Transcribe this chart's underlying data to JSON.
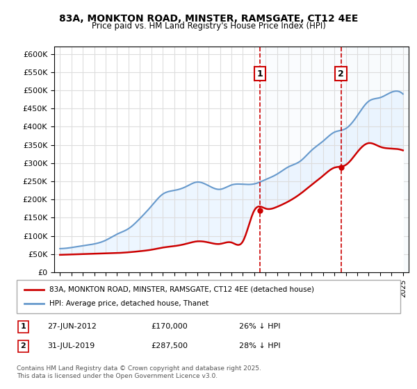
{
  "title": "83A, MONKTON ROAD, MINSTER, RAMSGATE, CT12 4EE",
  "subtitle": "Price paid vs. HM Land Registry's House Price Index (HPI)",
  "ylabel": "",
  "xlabel": "",
  "ylim": [
    0,
    620000
  ],
  "yticks": [
    0,
    50000,
    100000,
    150000,
    200000,
    250000,
    300000,
    350000,
    400000,
    450000,
    500000,
    550000,
    600000
  ],
  "ytick_labels": [
    "£0",
    "£50K",
    "£100K",
    "£150K",
    "£200K",
    "£250K",
    "£300K",
    "£350K",
    "£400K",
    "£450K",
    "£500K",
    "£550K",
    "£600K"
  ],
  "xlim_start": 1994.5,
  "xlim_end": 2025.5,
  "sale1_date": 2012.49,
  "sale1_price": 170000,
  "sale1_label": "1",
  "sale2_date": 2019.58,
  "sale2_price": 287500,
  "sale2_label": "2",
  "red_line_color": "#cc0000",
  "blue_line_color": "#6699cc",
  "fill_color": "#ddeeff",
  "vline_color": "#cc0000",
  "grid_color": "#dddddd",
  "background_color": "#ffffff",
  "legend_line1": "83A, MONKTON ROAD, MINSTER, RAMSGATE, CT12 4EE (detached house)",
  "legend_line2": "HPI: Average price, detached house, Thanet",
  "table_row1": [
    "1",
    "27-JUN-2012",
    "£170,000",
    "26% ↓ HPI"
  ],
  "table_row2": [
    "2",
    "31-JUL-2019",
    "£287,500",
    "28% ↓ HPI"
  ],
  "footnote": "Contains HM Land Registry data © Crown copyright and database right 2025.\nThis data is licensed under the Open Government Licence v3.0.",
  "hpi_years": [
    1995,
    1996,
    1997,
    1998,
    1999,
    2000,
    2001,
    2002,
    2003,
    2004,
    2005,
    2006,
    2007,
    2008,
    2009,
    2010,
    2011,
    2012,
    2013,
    2014,
    2015,
    2016,
    2017,
    2018,
    2019,
    2020,
    2021,
    2022,
    2023,
    2024,
    2025
  ],
  "hpi_values": [
    65000,
    68000,
    73000,
    78000,
    88000,
    105000,
    120000,
    148000,
    182000,
    215000,
    225000,
    235000,
    248000,
    238000,
    228000,
    240000,
    242000,
    243000,
    255000,
    270000,
    290000,
    305000,
    335000,
    360000,
    385000,
    395000,
    430000,
    470000,
    480000,
    495000,
    490000
  ],
  "price_paid_years": [
    1995,
    1996,
    1997,
    1998,
    1999,
    2000,
    2001,
    2002,
    2003,
    2004,
    2005,
    2006,
    2007,
    2008,
    2009,
    2010,
    2011,
    2012,
    2013,
    2014,
    2015,
    2016,
    2017,
    2018,
    2019,
    2020,
    2021,
    2022,
    2023,
    2024,
    2025
  ],
  "price_paid_values": [
    48000,
    49000,
    50000,
    51000,
    52000,
    53000,
    55000,
    58000,
    62000,
    68000,
    72000,
    78000,
    85000,
    82000,
    78000,
    82000,
    85000,
    170000,
    175000,
    180000,
    195000,
    215000,
    240000,
    265000,
    287500,
    295000,
    330000,
    355000,
    345000,
    340000,
    335000
  ]
}
